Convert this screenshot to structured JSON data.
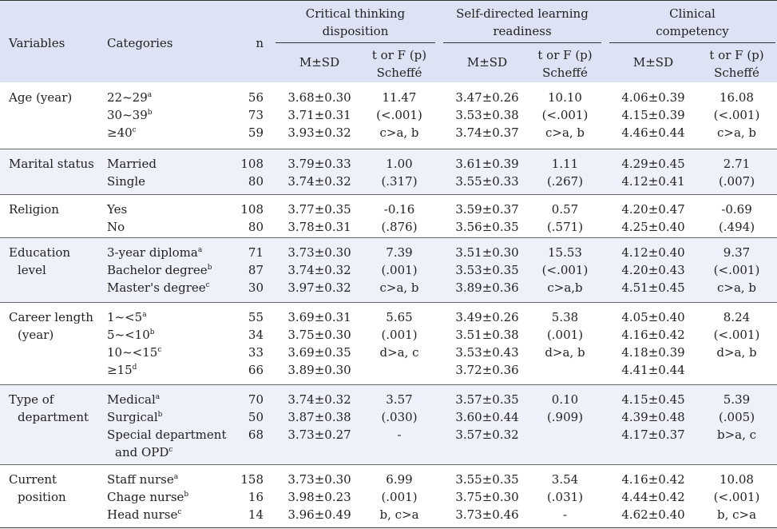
{
  "headers": {
    "variables": "Variables",
    "categories": "Categories",
    "n": "n",
    "groups": [
      "Critical thinking disposition",
      "Self-directed learning readiness",
      "Clinical competency"
    ],
    "group_lines": [
      [
        "Critical thinking",
        "disposition"
      ],
      [
        "Self-directed learning",
        "readiness"
      ],
      [
        "Clinical",
        "competency"
      ]
    ],
    "msd": "M±SD",
    "test_line1": "t or F (p)",
    "test_line2": "Scheffé"
  },
  "rows": [
    {
      "variable": [
        "Age (year)"
      ],
      "categories": [
        {
          "text": "22~29",
          "sup": "a"
        },
        {
          "text": "30~39",
          "sup": "b"
        },
        {
          "text": "≥40",
          "sup": "c"
        }
      ],
      "n": [
        "56",
        "73",
        "59"
      ],
      "ct": {
        "msd": [
          "3.68±0.30",
          "3.71±0.31",
          "3.93±0.32"
        ],
        "test": [
          "11.47",
          "(<.001)",
          "c>a, b"
        ]
      },
      "sdl": {
        "msd": [
          "3.47±0.26",
          "3.53±0.38",
          "3.74±0.37"
        ],
        "test": [
          "10.10",
          "(<.001)",
          "c>a, b"
        ]
      },
      "cc": {
        "msd": [
          "4.06±0.39",
          "4.15±0.39",
          "4.46±0.44"
        ],
        "test": [
          "16.08",
          "(<.001)",
          "c>a, b"
        ]
      }
    },
    {
      "variable": [
        "Marital status"
      ],
      "categories": [
        {
          "text": "Married",
          "sup": ""
        },
        {
          "text": "Single",
          "sup": ""
        }
      ],
      "n": [
        "108",
        "80"
      ],
      "ct": {
        "msd": [
          "3.79±0.33",
          "3.74±0.32"
        ],
        "test": [
          "1.00",
          "(.317)"
        ]
      },
      "sdl": {
        "msd": [
          "3.61±0.39",
          "3.55±0.33"
        ],
        "test": [
          "1.11",
          "(.267)"
        ]
      },
      "cc": {
        "msd": [
          "4.29±0.45",
          "4.12±0.41"
        ],
        "test": [
          "2.71",
          "(.007)"
        ]
      }
    },
    {
      "variable": [
        "Religion"
      ],
      "categories": [
        {
          "text": "Yes",
          "sup": ""
        },
        {
          "text": "No",
          "sup": ""
        }
      ],
      "n": [
        "108",
        "80"
      ],
      "ct": {
        "msd": [
          "3.77±0.35",
          "3.78±0.31"
        ],
        "test": [
          "-0.16",
          "(.876)"
        ]
      },
      "sdl": {
        "msd": [
          "3.59±0.37",
          "3.56±0.35"
        ],
        "test": [
          "0.57",
          "(.571)"
        ]
      },
      "cc": {
        "msd": [
          "4.20±0.47",
          "4.25±0.40"
        ],
        "test": [
          "-0.69",
          "(.494)"
        ]
      }
    },
    {
      "variable": [
        "Education",
        "level"
      ],
      "categories": [
        {
          "text": "3-year diploma",
          "sup": "a"
        },
        {
          "text": "Bachelor degree",
          "sup": "b"
        },
        {
          "text": "Master's degree",
          "sup": "c"
        }
      ],
      "n": [
        "71",
        "87",
        "30"
      ],
      "ct": {
        "msd": [
          "3.73±0.30",
          "3.74±0.32",
          "3.97±0.32"
        ],
        "test": [
          "7.39",
          "(.001)",
          "c>a, b"
        ]
      },
      "sdl": {
        "msd": [
          "3.51±0.30",
          "3.53±0.35",
          "3.89±0.36"
        ],
        "test": [
          "15.53",
          "(<.001)",
          "c>a,b"
        ]
      },
      "cc": {
        "msd": [
          "4.12±0.40",
          "4.20±0.43",
          "4.51±0.45"
        ],
        "test": [
          "9.37",
          "(<.001)",
          "c>a, b"
        ]
      }
    },
    {
      "variable": [
        "Career length",
        "(year)"
      ],
      "categories": [
        {
          "text": "1~<5",
          "sup": "a"
        },
        {
          "text": "5~<10",
          "sup": "b"
        },
        {
          "text": "10~<15",
          "sup": "c"
        },
        {
          "text": "≥15",
          "sup": "d"
        }
      ],
      "n": [
        "55",
        "34",
        "33",
        "66"
      ],
      "ct": {
        "msd": [
          "3.69±0.31",
          "3.75±0.30",
          "3.69±0.35",
          "3.89±0.30"
        ],
        "test": [
          "5.65",
          "(.001)",
          "d>a, c"
        ]
      },
      "sdl": {
        "msd": [
          "3.49±0.26",
          "3.51±0.38",
          "3.53±0.43",
          "3.72±0.36"
        ],
        "test": [
          "5.38",
          "(.001)",
          "d>a, b"
        ]
      },
      "cc": {
        "msd": [
          "4.05±0.40",
          "4.16±0.42",
          "4.18±0.39",
          "4.41±0.44"
        ],
        "test": [
          "8.24",
          "(<.001)",
          "d>a, b"
        ]
      }
    },
    {
      "variable": [
        "Type of",
        "department"
      ],
      "categories": [
        {
          "text": "Medical",
          "sup": "a"
        },
        {
          "text": "Surgical",
          "sup": "b"
        },
        {
          "text": "Special department",
          "sup": ""
        },
        {
          "text": "and OPD",
          "sup": "c"
        }
      ],
      "n": [
        "70",
        "50",
        "68"
      ],
      "ct": {
        "msd": [
          "3.74±0.32",
          "3.87±0.38",
          "3.73±0.27"
        ],
        "test": [
          "3.57",
          "(.030)",
          "-"
        ]
      },
      "sdl": {
        "msd": [
          "3.57±0.35",
          "3.60±0.44",
          "3.57±0.32"
        ],
        "test": [
          "0.10",
          "(.909)"
        ]
      },
      "cc": {
        "msd": [
          "4.15±0.45",
          "4.39±0.48",
          "4.17±0.37"
        ],
        "test": [
          "5.39",
          "(.005)",
          "b>a, c"
        ]
      }
    },
    {
      "variable": [
        "Current",
        "position"
      ],
      "categories": [
        {
          "text": "Staff nurse",
          "sup": "a"
        },
        {
          "text": "Chage nurse",
          "sup": "b"
        },
        {
          "text": "Head nurse",
          "sup": "c"
        }
      ],
      "n": [
        "158",
        "16",
        "14"
      ],
      "ct": {
        "msd": [
          "3.73±0.30",
          "3.98±0.23",
          "3.96±0.49"
        ],
        "test": [
          "6.99",
          "(.001)",
          "b, c>a"
        ]
      },
      "sdl": {
        "msd": [
          "3.55±0.35",
          "3.75±0.30",
          "3.73±0.46"
        ],
        "test": [
          "3.54",
          "(.031)",
          "-"
        ]
      },
      "cc": {
        "msd": [
          "4.16±0.42",
          "4.44±0.42",
          "4.62±0.40"
        ],
        "test": [
          "10.08",
          "(<.001)",
          "b, c>a"
        ]
      }
    }
  ]
}
